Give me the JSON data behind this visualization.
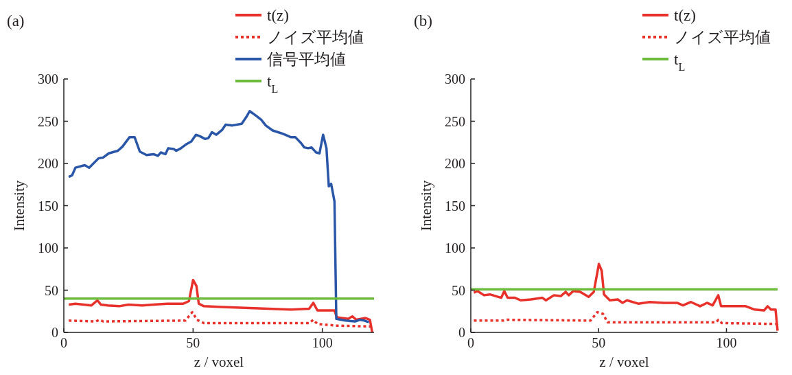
{
  "chart_data": [
    {
      "type": "line",
      "title": "(a)",
      "xlabel": "z / voxel",
      "ylabel": "Intensity",
      "xlim": [
        0,
        120
      ],
      "ylim": [
        0,
        300
      ],
      "xticks": [
        0,
        50,
        100
      ],
      "yticks": [
        0,
        50,
        100,
        150,
        200,
        250,
        300
      ],
      "legend": "top right",
      "series": [
        {
          "name": "t(z)",
          "color": "#e8312a",
          "line_style": "solid",
          "x": [
            1.9,
            4.5,
            10.7,
            13,
            14.3,
            17,
            21.4,
            25,
            30.3,
            34.7,
            40,
            46.2,
            48.4,
            50,
            51.3,
            52.2,
            54.2,
            61.3,
            70.1,
            79,
            87.9,
            94.9,
            96.5,
            98.1,
            104.7,
            105.6,
            110,
            111.6,
            113.1,
            116.7,
            118.4,
            119.3
          ],
          "values": [
            33,
            34,
            32,
            38,
            33,
            32,
            31,
            33,
            32,
            33,
            34,
            34,
            37,
            62,
            55,
            34,
            31,
            30,
            29,
            28,
            27,
            28,
            35,
            26,
            26,
            18,
            16,
            19,
            15,
            17,
            15,
            0
          ]
        },
        {
          "name": "ノイズ平均値",
          "color": "#e8312a",
          "line_style": "dotted",
          "x": [
            1.9,
            12.4,
            13.8,
            15.2,
            47,
            49.7,
            51.5,
            54.2,
            79,
            94.9,
            96.5,
            98.1,
            105.6,
            118.9
          ],
          "values": [
            14,
            13,
            15,
            13,
            14,
            24,
            15,
            11,
            11,
            11,
            15,
            10,
            8,
            7
          ]
        },
        {
          "name": "信号平均値",
          "color": "#2a56a8",
          "line_style": "solid",
          "x": [
            1.9,
            3.2,
            4.5,
            8.1,
            9.8,
            13.4,
            15.2,
            17.4,
            20.9,
            22.7,
            25.4,
            27.4,
            29.4,
            32,
            34.7,
            36.4,
            37.5,
            39.3,
            40.4,
            42.6,
            43.5,
            45.3,
            47.5,
            49.3,
            51.1,
            52.8,
            54.6,
            55.9,
            57.3,
            59,
            61.3,
            62.6,
            65.2,
            68.8,
            70.6,
            71.9,
            74.6,
            76.3,
            78.1,
            80.8,
            83.9,
            85.6,
            87.9,
            89.6,
            91.8,
            93,
            94.5,
            95.8,
            97.6,
            98.9,
            100.3,
            101.6,
            102.5,
            103.4,
            104.7,
            105.4,
            109.1,
            112.7,
            114.5,
            116.3,
            118
          ],
          "values": [
            184,
            186,
            195,
            198,
            195,
            206,
            207,
            212,
            215,
            220,
            231,
            231,
            214,
            210,
            211,
            209,
            213,
            211,
            218,
            217,
            215,
            218,
            223,
            226,
            234,
            232,
            229,
            230,
            237,
            234,
            240,
            246,
            245,
            247,
            255,
            262,
            256,
            252,
            245,
            239,
            236,
            234,
            231,
            231,
            224,
            219,
            218,
            219,
            213,
            212,
            234,
            218,
            173,
            176,
            155,
            16,
            14,
            13,
            15,
            14,
            12
          ]
        },
        {
          "name": "t$_{L}$",
          "color": "#6cbb3c",
          "line_style": "solid",
          "x": [
            0,
            120
          ],
          "values": [
            40,
            40
          ]
        }
      ]
    },
    {
      "type": "line",
      "title": "(b)",
      "xlabel": "z / voxel",
      "ylabel": "Intensity",
      "xlim": [
        0,
        120
      ],
      "ylim": [
        0,
        300
      ],
      "xticks": [
        0,
        50,
        100
      ],
      "yticks": [
        0,
        50,
        100,
        150,
        200,
        250,
        300
      ],
      "legend": "top right",
      "series": [
        {
          "name": "t(z)",
          "color": "#e8312a",
          "line_style": "solid",
          "x": [
            1.2,
            2.6,
            5.2,
            7.5,
            11.9,
            13.1,
            14.4,
            17.3,
            19.5,
            23.5,
            28,
            29.4,
            32.5,
            35.2,
            37.1,
            38.3,
            40.1,
            42.8,
            46.1,
            48.1,
            50.1,
            51.2,
            52.1,
            54.4,
            57.5,
            59.3,
            61.1,
            65.5,
            70,
            75.4,
            80.7,
            83,
            86.1,
            89.7,
            92.4,
            94.6,
            96.8,
            97.9,
            100.4,
            107.5,
            111.1,
            114.7,
            116.1,
            117.4,
            119.2,
            120
          ],
          "values": [
            47,
            49,
            44,
            45,
            41,
            49,
            41,
            41,
            38,
            39,
            41,
            38,
            44,
            43,
            48,
            44,
            49,
            48,
            42,
            48,
            81,
            73,
            45,
            38,
            39,
            35,
            38,
            34,
            36,
            35,
            35,
            32,
            36,
            31,
            35,
            32,
            44,
            31,
            31,
            31,
            27,
            26,
            31,
            27,
            27,
            2
          ]
        },
        {
          "name": "ノイズ平均値",
          "color": "#e8312a",
          "line_style": "dotted",
          "x": [
            1.2,
            12.8,
            14.2,
            46.8,
            49.5,
            51.7,
            53.5,
            79,
            96,
            96.8,
            98.2,
            119.2
          ],
          "values": [
            14,
            14,
            15,
            14,
            24,
            22,
            12,
            12,
            12,
            15,
            11,
            10
          ]
        },
        {
          "name": "t$_{L}$",
          "color": "#6cbb3c",
          "line_style": "solid",
          "x": [
            0,
            120
          ],
          "values": [
            51,
            51
          ]
        }
      ]
    }
  ]
}
